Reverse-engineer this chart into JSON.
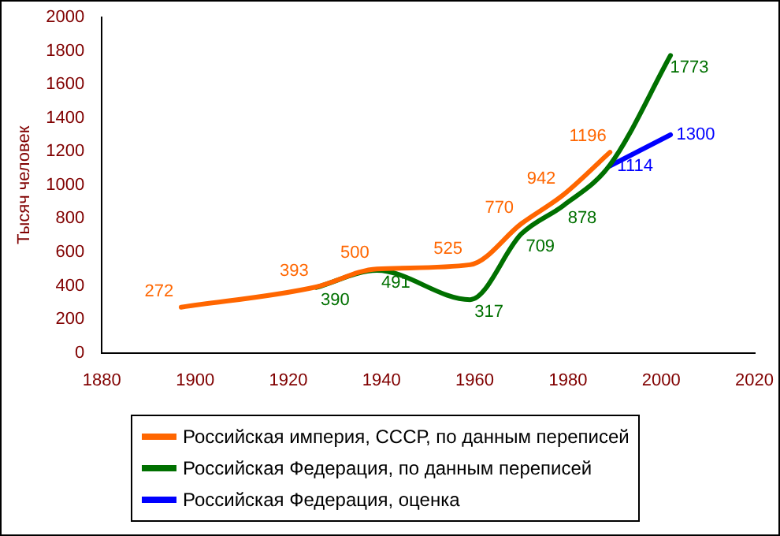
{
  "chart_data": {
    "type": "line",
    "ylabel": "Тысяч человек",
    "xlim": [
      1880,
      2020
    ],
    "xticks": [
      1880,
      1900,
      1920,
      1940,
      1960,
      1980,
      2000,
      2020
    ],
    "ylim": [
      0,
      2000
    ],
    "yticks": [
      0,
      200,
      400,
      600,
      800,
      1000,
      1200,
      1400,
      1600,
      1800,
      2000
    ],
    "grid": false,
    "legend": "bottom",
    "marker": "none",
    "series": [
      {
        "name": "Российская империя, СССР, по данным переписей",
        "color": "#ff6600",
        "x": [
          1897,
          1926,
          1939,
          1959,
          1970,
          1979,
          1989
        ],
        "values": [
          272,
          393,
          500,
          525,
          770,
          942,
          1196
        ],
        "value_labels": [
          "272",
          "393",
          "500",
          "525",
          "770",
          "942",
          "1196"
        ]
      },
      {
        "name": "Российская Федерация, по данным переписей",
        "color": "#007000",
        "x": [
          1926,
          1939,
          1959,
          1970,
          1979,
          1989,
          2002
        ],
        "values": [
          390,
          491,
          317,
          709,
          878,
          1120,
          1773
        ],
        "value_labels": [
          "390",
          "491",
          "317",
          "709",
          "878",
          null,
          "1773"
        ]
      },
      {
        "name": "Российская Федерация, оценка",
        "color": "#0000ff",
        "x": [
          1989,
          2002
        ],
        "values": [
          1114,
          1300
        ],
        "value_labels": [
          "1114",
          "1300"
        ]
      }
    ]
  }
}
